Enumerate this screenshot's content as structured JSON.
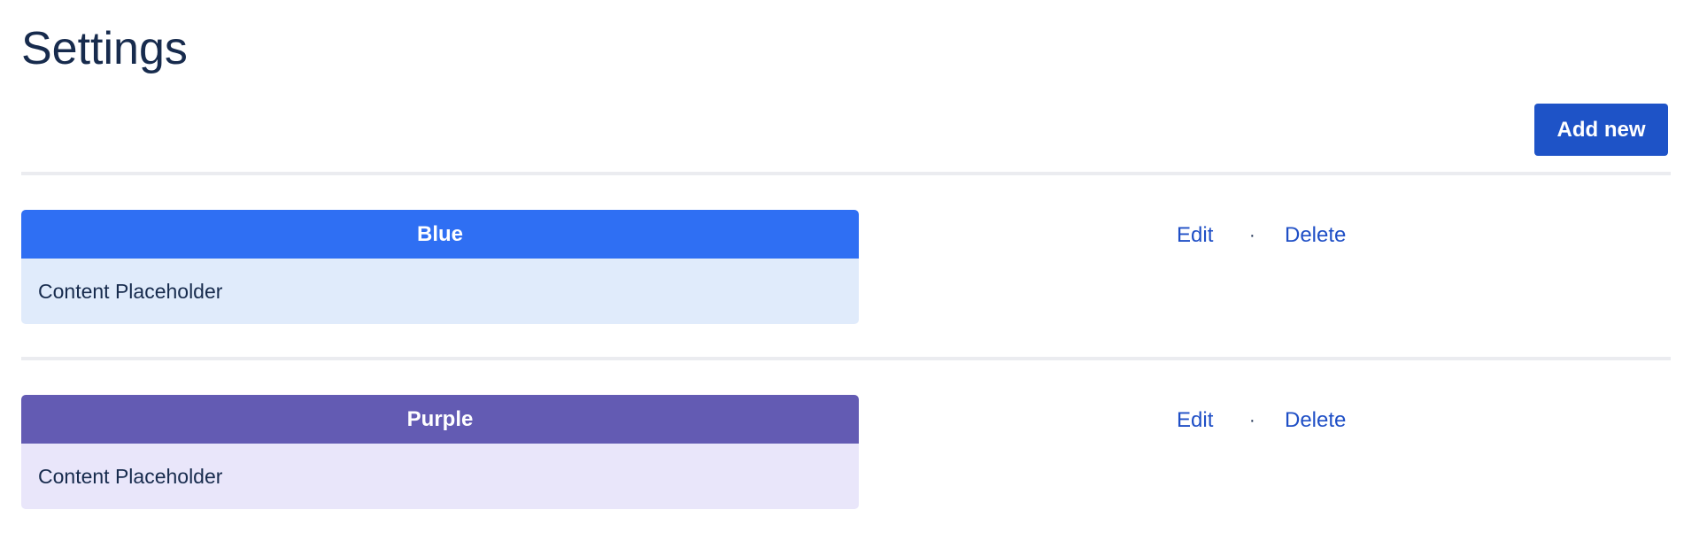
{
  "page": {
    "title": "Settings"
  },
  "toolbar": {
    "add_new_label": "Add new"
  },
  "items": [
    {
      "name": "Blue",
      "content": "Content Placeholder",
      "header_color": "#2f6ff3",
      "body_color": "#e0ebfb",
      "edit_label": "Edit",
      "separator": "·",
      "delete_label": "Delete"
    },
    {
      "name": "Purple",
      "content": "Content Placeholder",
      "header_color": "#635bb3",
      "body_color": "#e9e6fa",
      "edit_label": "Edit",
      "separator": "·",
      "delete_label": "Delete"
    }
  ]
}
